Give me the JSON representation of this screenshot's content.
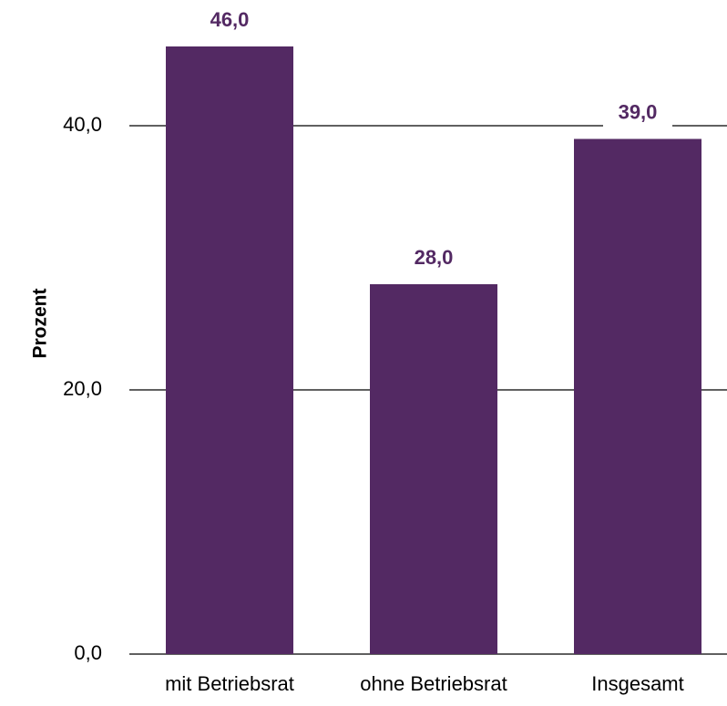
{
  "chart_data": {
    "type": "bar",
    "categories": [
      "mit Betriebsrat",
      "ohne Betriebsrat",
      "Insgesamt"
    ],
    "values": [
      46.0,
      28.0,
      39.0
    ],
    "value_labels": [
      "46,0",
      "28,0",
      "39,0"
    ],
    "title": "",
    "xlabel": "",
    "ylabel": "Prozent",
    "ylim": [
      0,
      50
    ],
    "yticks": [
      0,
      20,
      40
    ],
    "ytick_labels": [
      "0,0",
      "20,0",
      "40,0"
    ],
    "grid": true,
    "legend": "none",
    "colors": {
      "bar": "#532963",
      "value_label": "#532963",
      "grid": "#000000"
    }
  }
}
